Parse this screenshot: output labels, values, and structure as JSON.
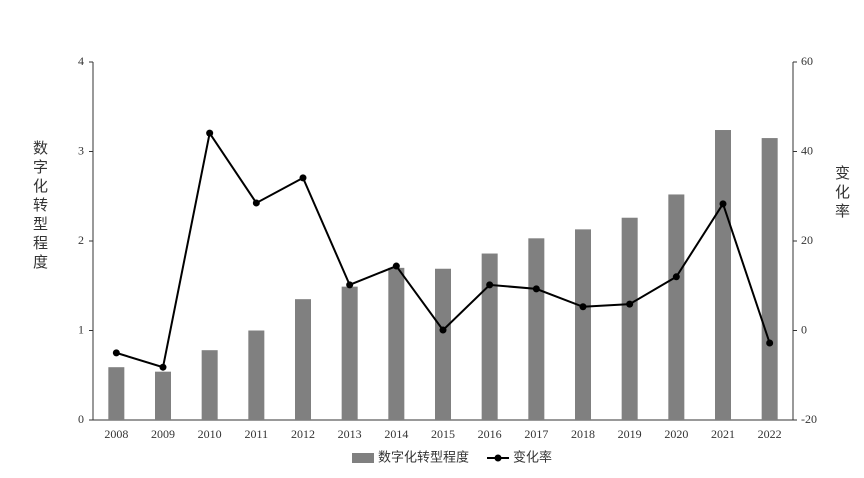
{
  "chart_data": {
    "type": "bar-line",
    "categories": [
      "2008",
      "2009",
      "2010",
      "2011",
      "2012",
      "2013",
      "2014",
      "2015",
      "2016",
      "2017",
      "2018",
      "2019",
      "2020",
      "2021",
      "2022"
    ],
    "ylabel": "数字化转型程度",
    "y2label": "变化率",
    "ylim": [
      0,
      4
    ],
    "yticks": [
      0,
      1,
      2,
      3,
      4
    ],
    "y2lim": [
      -20,
      60
    ],
    "y2ticks": [
      -20,
      0,
      20,
      40,
      60
    ],
    "series": [
      {
        "name": "数字化转型程度",
        "type": "bar",
        "color": "#808080",
        "values": [
          0.59,
          0.54,
          0.78,
          1.0,
          1.35,
          1.49,
          1.7,
          1.69,
          1.86,
          2.03,
          2.13,
          2.26,
          2.52,
          3.24,
          3.15
        ]
      },
      {
        "name": "变化率",
        "type": "line",
        "color": "#000000",
        "axis": "y2",
        "values": [
          -5.0,
          -8.2,
          44.1,
          28.5,
          34.1,
          10.2,
          14.4,
          0.1,
          10.2,
          9.3,
          5.3,
          5.9,
          12.0,
          28.3,
          -2.8
        ]
      }
    ],
    "legend": "bottom"
  }
}
